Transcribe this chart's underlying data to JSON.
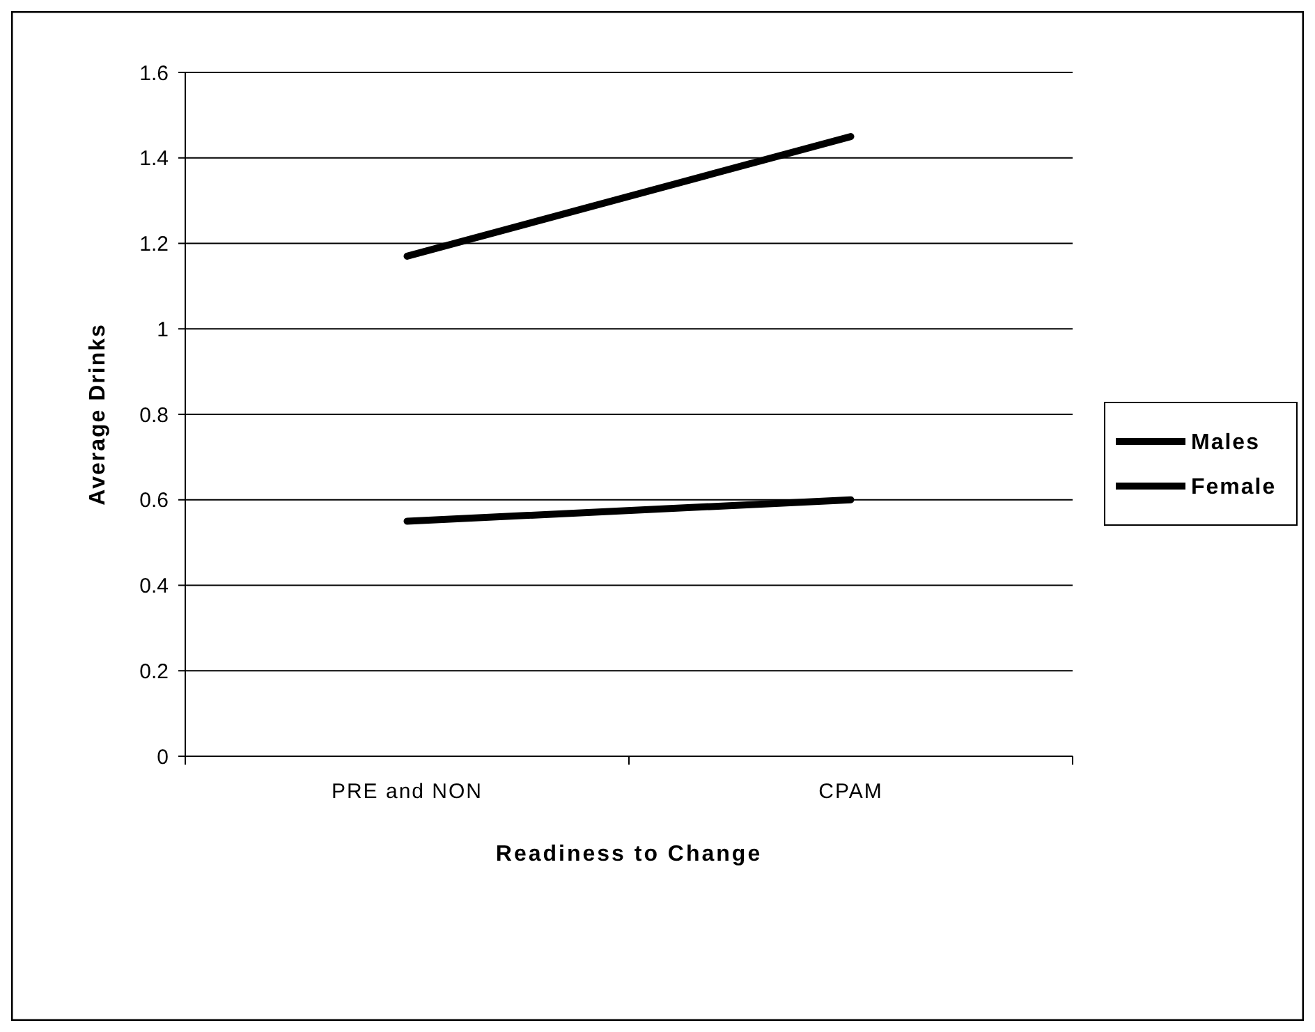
{
  "chart_data": {
    "type": "line",
    "xlabel": "Readiness to Change",
    "ylabel": "Average Drinks",
    "categories": [
      "PRE and NON",
      "CPAM"
    ],
    "series": [
      {
        "name": "Males",
        "color": "#000000",
        "values": [
          1.17,
          1.45
        ]
      },
      {
        "name": "Female",
        "color": "#000000",
        "values": [
          0.55,
          0.6
        ]
      }
    ],
    "ylim": [
      0,
      1.6
    ],
    "yticks": [
      0,
      0.2,
      0.4,
      0.6,
      0.8,
      1,
      1.2,
      1.4,
      1.6
    ],
    "grid": "y",
    "legend": "right",
    "marker": "none",
    "line_style": "solid"
  }
}
